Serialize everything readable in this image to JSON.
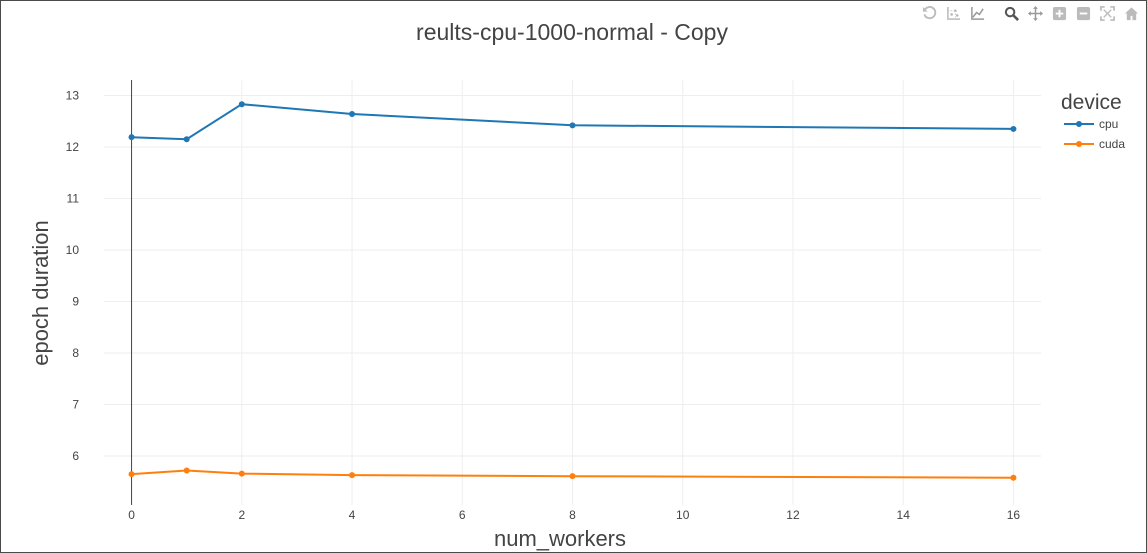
{
  "modebar": {
    "buttons": [
      {
        "icon": "reset-axes-icon",
        "active": false
      },
      {
        "icon": "scatter-spikes-icon",
        "active": false
      },
      {
        "icon": "line-spikes-icon",
        "active": false
      },
      {
        "icon": "zoom-icon",
        "active": true
      },
      {
        "icon": "pan-icon",
        "active": true
      },
      {
        "icon": "zoom-in-icon",
        "active": false
      },
      {
        "icon": "zoom-out-icon",
        "active": false
      },
      {
        "icon": "autoscale-icon",
        "active": false
      },
      {
        "icon": "home-icon",
        "active": false
      }
    ]
  },
  "chart_data": {
    "type": "line",
    "title": "reults-cpu-1000-normal - Copy",
    "xlabel": "num_workers",
    "ylabel": "epoch duration",
    "xlim": [
      -0.5,
      16.5
    ],
    "ylim": [
      5.05,
      13.3
    ],
    "xticks": [
      0,
      2,
      4,
      6,
      8,
      10,
      12,
      14,
      16
    ],
    "yticks": [
      6,
      7,
      8,
      9,
      10,
      11,
      12,
      13
    ],
    "grid": true,
    "legend": {
      "title": "device",
      "placement": "top-right"
    },
    "x": [
      0,
      1,
      2,
      4,
      8,
      16
    ],
    "series": [
      {
        "name": "cpu",
        "color": "#1f77b4",
        "values": [
          12.19,
          12.15,
          12.83,
          12.64,
          12.42,
          12.35
        ]
      },
      {
        "name": "cuda",
        "color": "#ff7f0e",
        "values": [
          5.65,
          5.72,
          5.66,
          5.63,
          5.61,
          5.58
        ]
      }
    ]
  }
}
